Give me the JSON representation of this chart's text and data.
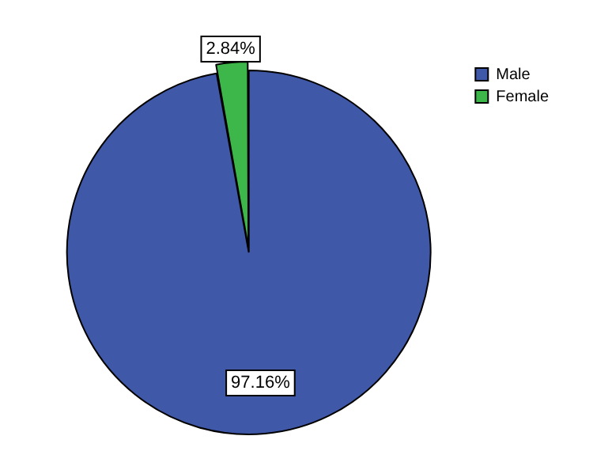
{
  "chart_data": {
    "type": "pie",
    "categories": [
      "Male",
      "Female"
    ],
    "values": [
      97.16,
      2.84
    ],
    "colors": [
      "#3f58a8",
      "#3db64a"
    ],
    "value_labels": [
      "97.16%",
      "2.84%"
    ],
    "legend": "right"
  }
}
